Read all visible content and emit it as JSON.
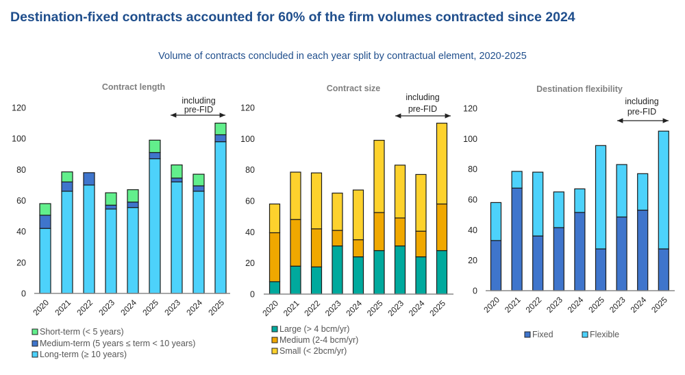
{
  "title": "Destination-fixed contracts accounted for 60% of the firm volumes contracted since 2024",
  "subtitle": "Volume of contracts concluded in each year split by contractual element, 2020-2025",
  "annotation": [
    "including",
    "pre-FID"
  ],
  "chart_data": [
    {
      "type": "bar",
      "stacked": true,
      "title": "Contract length",
      "categories": [
        "2020",
        "2021",
        "2022",
        "2023",
        "2024",
        "2025",
        "2023",
        "2024",
        "2025"
      ],
      "ylim": [
        0,
        120
      ],
      "yticks": [
        "0",
        "20",
        "40",
        "60",
        "80",
        "100",
        "120"
      ],
      "annotation_range": "2023-2025 (pre-FID)",
      "series": [
        {
          "name": "Long-term (≥ 10 years)",
          "color": "#4dd2fb",
          "values": [
            42,
            66,
            70,
            54.5,
            55.5,
            87,
            72,
            66,
            98
          ]
        },
        {
          "name": "Medium-term (5 years ≤ term < 10 years)",
          "color": "#3f75cc",
          "values": [
            8.5,
            6,
            8,
            2.5,
            3.5,
            4,
            2.5,
            3.5,
            4.5
          ]
        },
        {
          "name": "Short-term (< 5 years)",
          "color": "#62ef8c",
          "values": [
            7.5,
            6.5,
            0,
            8,
            8,
            8,
            8.5,
            7.5,
            7.5
          ]
        }
      ],
      "legend_order": [
        2,
        1,
        0
      ]
    },
    {
      "type": "bar",
      "stacked": true,
      "title": "Contract size",
      "categories": [
        "2020",
        "2021",
        "2022",
        "2023",
        "2024",
        "2025",
        "2023",
        "2024",
        "2025"
      ],
      "ylim": [
        0,
        120
      ],
      "yticks": [
        "0",
        "20",
        "40",
        "60",
        "80",
        "100",
        "120"
      ],
      "annotation_range": "2023-2025 (pre-FID)",
      "series": [
        {
          "name": "Large (> 4 bcm/yr)",
          "color": "#00a99d",
          "values": [
            8,
            18,
            17.5,
            31,
            24,
            28,
            31,
            24,
            28
          ]
        },
        {
          "name": "Medium (2-4 bcm/yr)",
          "color": "#f0a800",
          "values": [
            31.5,
            30,
            24.5,
            10,
            11,
            24.5,
            18,
            16.5,
            30
          ]
        },
        {
          "name": "Small (< 2bcm/yr)",
          "color": "#fdd22d",
          "values": [
            18.5,
            30.5,
            36,
            24,
            32,
            46.5,
            34,
            36.5,
            52
          ]
        }
      ],
      "legend_order": [
        0,
        1,
        2
      ]
    },
    {
      "type": "bar",
      "stacked": true,
      "title": "Destination flexibility",
      "categories": [
        "2020",
        "2021",
        "2022",
        "2023",
        "2024",
        "2025",
        "2023",
        "2024",
        "2025"
      ],
      "ylim": [
        0,
        120
      ],
      "yticks": [
        "0",
        "20",
        "40",
        "60",
        "80",
        "100",
        "120"
      ],
      "annotation_range": "2023-2025 (pre-FID)",
      "series": [
        {
          "name": "Fixed",
          "color": "#3f75cc",
          "values": [
            33,
            67.5,
            36,
            41.5,
            51.5,
            27.5,
            48.5,
            53,
            27.5
          ]
        },
        {
          "name": "Flexible",
          "color": "#4dd2fb",
          "values": [
            25,
            11,
            42,
            23.5,
            15.5,
            68,
            34.5,
            24,
            77.5
          ]
        }
      ],
      "legend_order": [
        0,
        1
      ]
    }
  ]
}
